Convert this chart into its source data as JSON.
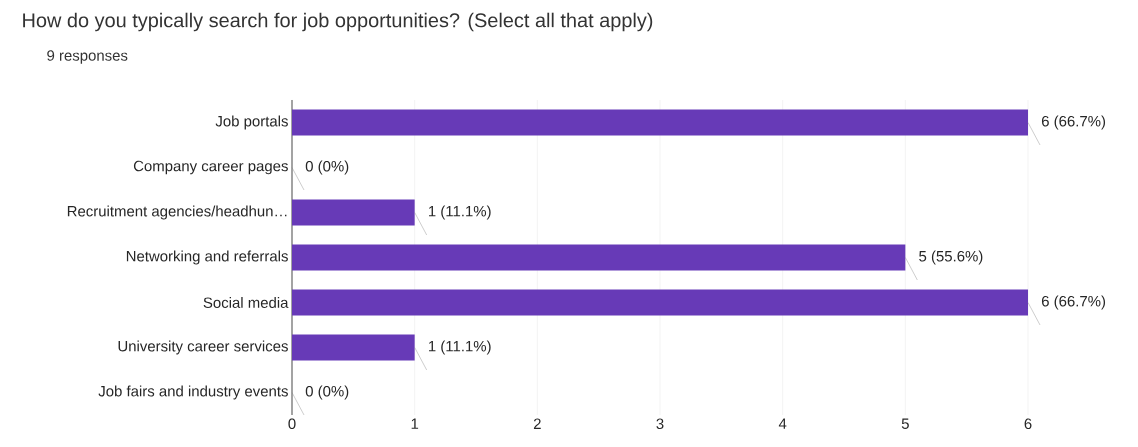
{
  "chart_data": {
    "type": "bar",
    "orientation": "horizontal",
    "title": "How do you typically search for job opportunities? (Select all that apply)",
    "subtitle": "9 responses",
    "categories": [
      "Job portals",
      "Company career pages",
      "Recruitment agencies/headhun…",
      "Networking and referrals",
      "Social media",
      "University career services",
      "Job fairs and industry events"
    ],
    "values": [
      6,
      0,
      1,
      5,
      6,
      1,
      0
    ],
    "value_labels": [
      "6 (66.7%)",
      "0 (0%)",
      "1 (11.1%)",
      "5 (55.6%)",
      "6 (66.7%)",
      "1 (11.1%)",
      "0 (0%)"
    ],
    "color": "#673ab7",
    "xlim": [
      0,
      6
    ],
    "xticks": [
      0,
      1,
      2,
      3,
      4,
      5,
      6
    ],
    "grid": "x"
  }
}
